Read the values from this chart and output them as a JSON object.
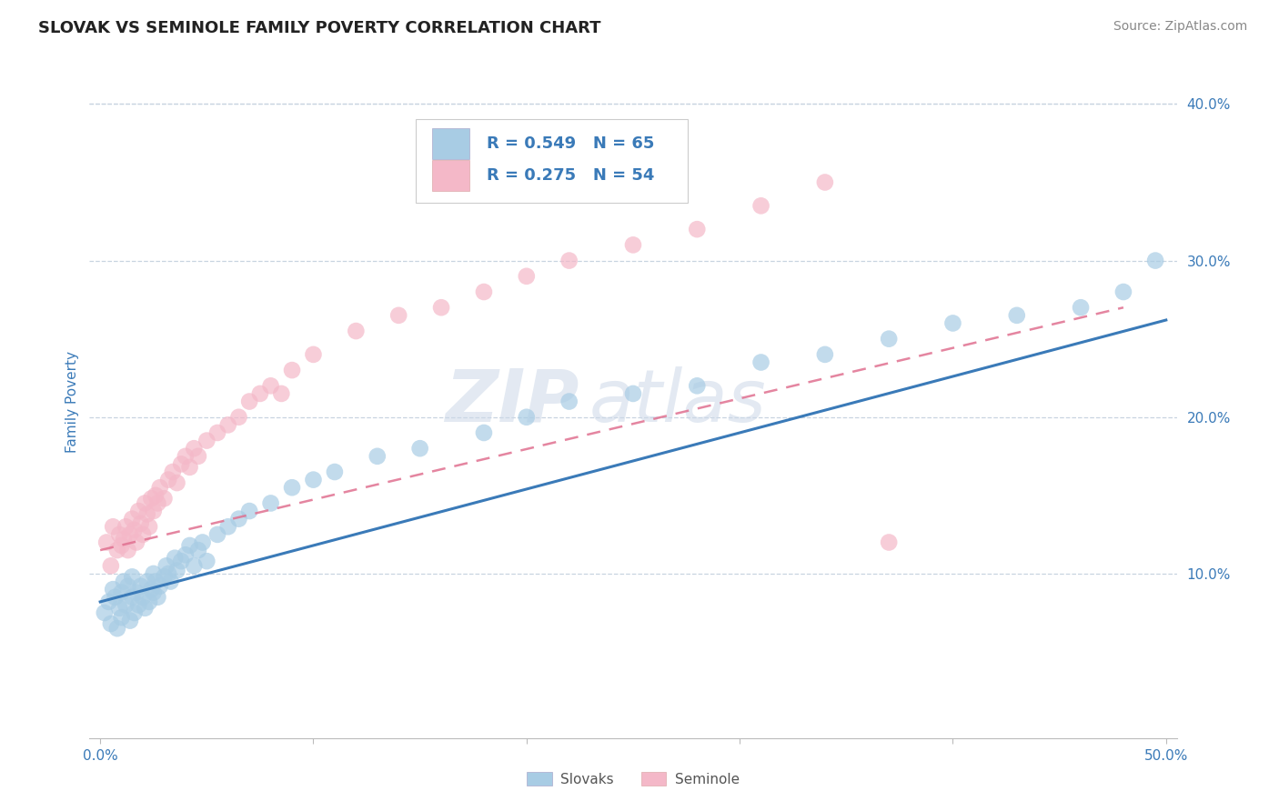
{
  "title": "SLOVAK VS SEMINOLE FAMILY POVERTY CORRELATION CHART",
  "source": "Source: ZipAtlas.com",
  "ylabel": "Family Poverty",
  "watermark": "ZIPAtlas",
  "xlim": [
    -0.005,
    0.505
  ],
  "ylim": [
    -0.005,
    0.425
  ],
  "yticks": [
    0.1,
    0.2,
    0.3,
    0.4
  ],
  "ytick_labels": [
    "10.0%",
    "20.0%",
    "30.0%",
    "40.0%"
  ],
  "xticks": [
    0.0,
    0.1,
    0.2,
    0.3,
    0.4,
    0.5
  ],
  "xtick_labels": [
    "0.0%",
    "",
    "",
    "",
    "",
    "50.0%"
  ],
  "blue_color": "#a8cce4",
  "pink_color": "#f4b8c8",
  "blue_line_color": "#3a7ab8",
  "pink_line_color": "#e07090",
  "blue_R": 0.549,
  "blue_N": 65,
  "pink_R": 0.275,
  "pink_N": 54,
  "blue_scatter_x": [
    0.002,
    0.004,
    0.005,
    0.006,
    0.007,
    0.008,
    0.009,
    0.01,
    0.01,
    0.011,
    0.012,
    0.013,
    0.014,
    0.015,
    0.015,
    0.016,
    0.017,
    0.018,
    0.019,
    0.02,
    0.021,
    0.022,
    0.023,
    0.024,
    0.025,
    0.025,
    0.026,
    0.027,
    0.028,
    0.03,
    0.031,
    0.032,
    0.033,
    0.035,
    0.036,
    0.038,
    0.04,
    0.042,
    0.044,
    0.046,
    0.048,
    0.05,
    0.055,
    0.06,
    0.065,
    0.07,
    0.08,
    0.09,
    0.1,
    0.11,
    0.13,
    0.15,
    0.18,
    0.2,
    0.22,
    0.25,
    0.28,
    0.31,
    0.34,
    0.37,
    0.4,
    0.43,
    0.46,
    0.48,
    0.495
  ],
  "blue_scatter_y": [
    0.075,
    0.082,
    0.068,
    0.09,
    0.085,
    0.065,
    0.078,
    0.072,
    0.088,
    0.095,
    0.08,
    0.092,
    0.07,
    0.085,
    0.098,
    0.075,
    0.088,
    0.08,
    0.092,
    0.085,
    0.078,
    0.095,
    0.082,
    0.09,
    0.088,
    0.1,
    0.095,
    0.085,
    0.092,
    0.098,
    0.105,
    0.1,
    0.095,
    0.11,
    0.102,
    0.108,
    0.112,
    0.118,
    0.105,
    0.115,
    0.12,
    0.108,
    0.125,
    0.13,
    0.135,
    0.14,
    0.145,
    0.155,
    0.16,
    0.165,
    0.175,
    0.18,
    0.19,
    0.2,
    0.21,
    0.215,
    0.22,
    0.235,
    0.24,
    0.25,
    0.26,
    0.265,
    0.27,
    0.28,
    0.3
  ],
  "pink_scatter_x": [
    0.003,
    0.005,
    0.006,
    0.008,
    0.009,
    0.01,
    0.011,
    0.012,
    0.013,
    0.014,
    0.015,
    0.016,
    0.017,
    0.018,
    0.019,
    0.02,
    0.021,
    0.022,
    0.023,
    0.024,
    0.025,
    0.026,
    0.027,
    0.028,
    0.03,
    0.032,
    0.034,
    0.036,
    0.038,
    0.04,
    0.042,
    0.044,
    0.046,
    0.05,
    0.055,
    0.06,
    0.065,
    0.07,
    0.075,
    0.08,
    0.085,
    0.09,
    0.1,
    0.12,
    0.14,
    0.16,
    0.18,
    0.2,
    0.22,
    0.25,
    0.28,
    0.31,
    0.34,
    0.37
  ],
  "pink_scatter_y": [
    0.12,
    0.105,
    0.13,
    0.115,
    0.125,
    0.118,
    0.122,
    0.13,
    0.115,
    0.125,
    0.135,
    0.128,
    0.12,
    0.14,
    0.132,
    0.125,
    0.145,
    0.138,
    0.13,
    0.148,
    0.14,
    0.15,
    0.145,
    0.155,
    0.148,
    0.16,
    0.165,
    0.158,
    0.17,
    0.175,
    0.168,
    0.18,
    0.175,
    0.185,
    0.19,
    0.195,
    0.2,
    0.21,
    0.215,
    0.22,
    0.215,
    0.23,
    0.24,
    0.255,
    0.265,
    0.27,
    0.28,
    0.29,
    0.3,
    0.31,
    0.32,
    0.335,
    0.35,
    0.12
  ],
  "background_color": "#ffffff",
  "grid_color": "#c8d4e0",
  "title_color": "#222222",
  "axis_label_color": "#3a7ab8",
  "tick_label_color": "#3a7ab8"
}
